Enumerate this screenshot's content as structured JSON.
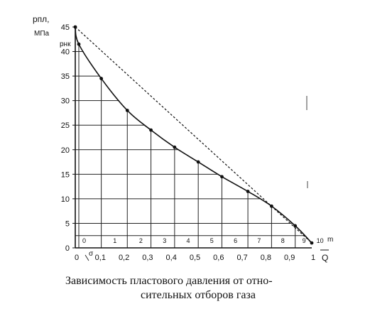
{
  "chart_data": {
    "type": "line",
    "title": "",
    "ylabel_main": "pпл,",
    "ylabel_unit": "МПа",
    "ylabel_extra": "pнк",
    "xlabel": "Q",
    "xlabel_top": "m",
    "sigma_label": "σ",
    "caption_line1": "Зависимость пластового давления от отно-",
    "caption_line2": "сительных отборов газа",
    "xlim": [
      0,
      1
    ],
    "ylim": [
      0,
      45
    ],
    "x_ticks": [
      "0",
      "0,1",
      "0,2",
      "0,3",
      "0,4",
      "0,5",
      "0,6",
      "0,7",
      "0,8",
      "0,9",
      "1"
    ],
    "y_ticks": [
      "0",
      "5",
      "10",
      "15",
      "20",
      "25",
      "30",
      "35",
      "40",
      "45"
    ],
    "m_labels": [
      "0",
      "1",
      "2",
      "3",
      "4",
      "5",
      "6",
      "7",
      "8",
      "9",
      "10"
    ],
    "series": [
      {
        "style": "solid",
        "x": [
          0,
          0.015,
          0.11,
          0.22,
          0.32,
          0.42,
          0.52,
          0.62,
          0.73,
          0.83,
          0.93,
          1.0
        ],
        "y": [
          45,
          41.5,
          34.5,
          28,
          24,
          20.5,
          17.5,
          14.5,
          11.5,
          8.5,
          4.5,
          1
        ]
      },
      {
        "style": "dashed",
        "x": [
          0,
          1.0
        ],
        "y": [
          45,
          1
        ]
      }
    ]
  }
}
